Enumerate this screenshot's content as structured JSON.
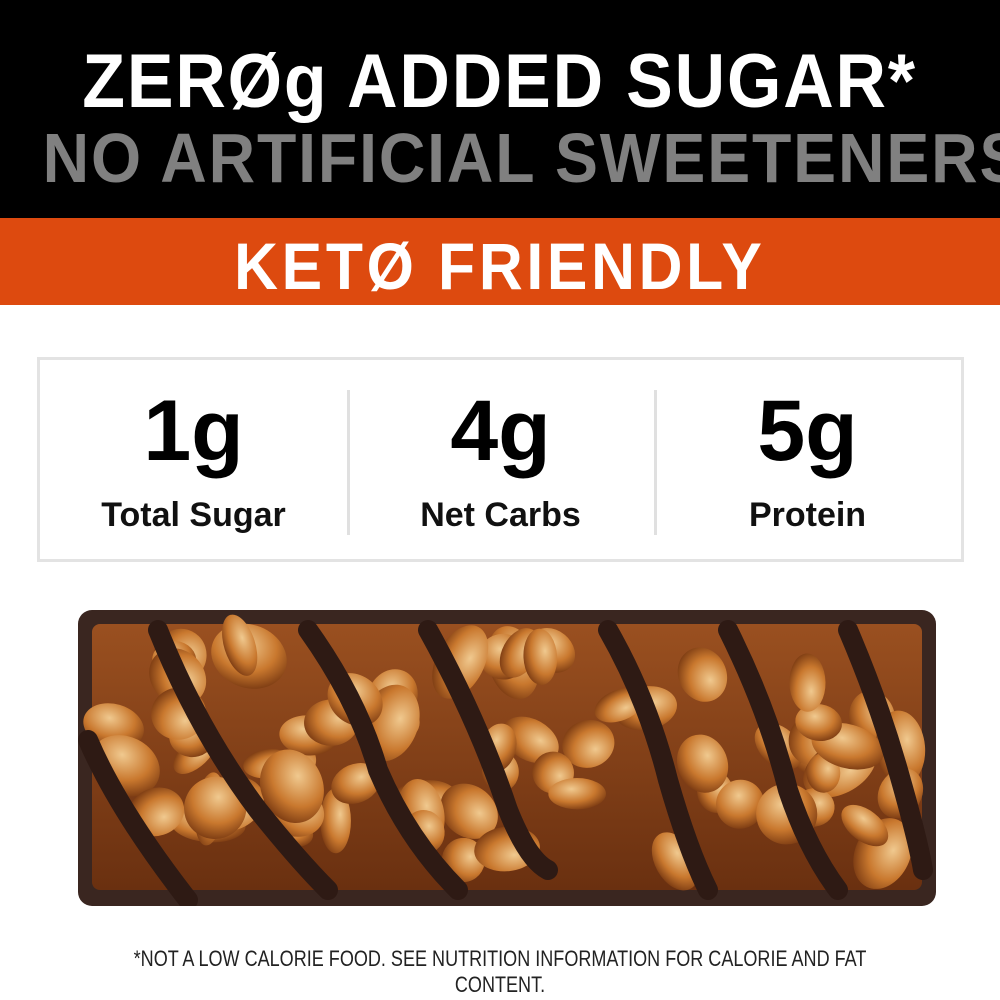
{
  "headline": {
    "line1": "ZERØg ADDED SUGAR*",
    "line2": "NO ARTIFICIAL SWEETENERS"
  },
  "banner": {
    "text": "KETØ FRIENDLY",
    "color": "#dd4a0f"
  },
  "stats": [
    {
      "value": "1g",
      "label": "Total Sugar"
    },
    {
      "value": "4g",
      "label": "Net Carbs"
    },
    {
      "value": "5g",
      "label": "Protein"
    }
  ],
  "disclaimer": "*NOT A LOW CALORIE FOOD. SEE NUTRITION INFORMATION FOR CALORIE AND FAT CONTENT."
}
